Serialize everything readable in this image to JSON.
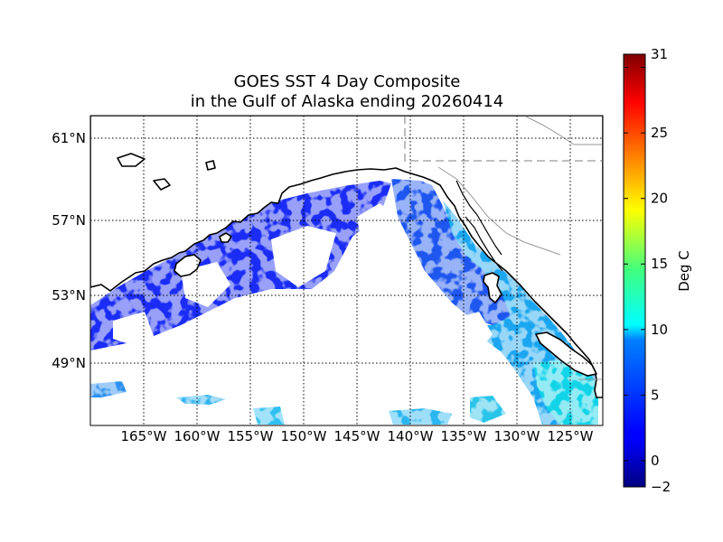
{
  "title": {
    "line1": "GOES SST 4 Day Composite",
    "line2": "in the Gulf of Alaska ending 20260414"
  },
  "map": {
    "projection": "mercator",
    "lon_range": [
      -170,
      -122
    ],
    "lat_range": [
      46,
      62
    ],
    "grid": true,
    "meridians": [
      -165,
      -160,
      -155,
      -150,
      -145,
      -140,
      -135,
      -130,
      -125
    ],
    "meridian_labels": [
      "165°W",
      "160°W",
      "155°W",
      "150°W",
      "145°W",
      "140°W",
      "135°W",
      "130°W",
      "125°W"
    ],
    "parallels": [
      49,
      53,
      57,
      61
    ],
    "parallel_labels": [
      "49°N",
      "53°N",
      "57°N",
      "61°N"
    ],
    "land_color": "#ffffff",
    "coastline_color": "#000000",
    "border_color": "#999999"
  },
  "colorbar": {
    "label": "Deg C",
    "min": -2,
    "max": 31,
    "ticks": [
      -2,
      0,
      5,
      10,
      15,
      20,
      25,
      30,
      31
    ],
    "tick_labels": [
      "−2",
      "0",
      "5",
      "10",
      "15",
      "20",
      "25",
      "",
      "31"
    ],
    "colormap": "jet"
  }
}
